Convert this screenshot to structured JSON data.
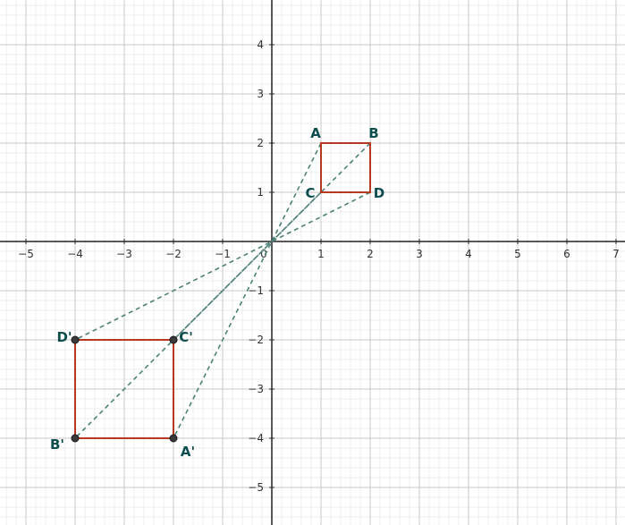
{
  "chart_data": {
    "type": "scatter",
    "xlim": [
      -5.5,
      7.1
    ],
    "ylim": [
      -5.7,
      4.95
    ],
    "grid": true,
    "x_ticks": [
      "−5",
      "−4",
      "−3",
      "−2",
      "−1",
      "0",
      "1",
      "2",
      "3",
      "4",
      "5",
      "6",
      "7"
    ],
    "y_ticks": [
      "−5",
      "−4",
      "−3",
      "−2",
      "−1",
      "1",
      "2",
      "3",
      "4"
    ],
    "points": [
      {
        "label": "A",
        "x": 1,
        "y": 2
      },
      {
        "label": "B",
        "x": 2,
        "y": 2
      },
      {
        "label": "C",
        "x": 1,
        "y": 1
      },
      {
        "label": "D",
        "x": 2,
        "y": 1
      },
      {
        "label": "A'",
        "x": -2,
        "y": -4
      },
      {
        "label": "B'",
        "x": -4,
        "y": -4
      },
      {
        "label": "C'",
        "x": -2,
        "y": -2
      },
      {
        "label": "D'",
        "x": -4,
        "y": -2
      }
    ],
    "squares": [
      {
        "vertices": [
          "A",
          "B",
          "D",
          "C"
        ]
      },
      {
        "vertices": [
          "D'",
          "C'",
          "A'",
          "B'"
        ]
      }
    ],
    "dilation_lines": [
      {
        "from": "A",
        "to": "A'"
      },
      {
        "from": "B",
        "to": "B'"
      },
      {
        "from": "C",
        "to": "C'"
      },
      {
        "from": "D",
        "to": "D'"
      }
    ],
    "colors": {
      "square": "#b5391f",
      "dashed": "#4d8078",
      "point": "#3a3a3a",
      "label": "#0d4d4d",
      "grid_major": "#c8c8c8",
      "grid_minor": "#ececec",
      "axis": "#222222"
    }
  }
}
